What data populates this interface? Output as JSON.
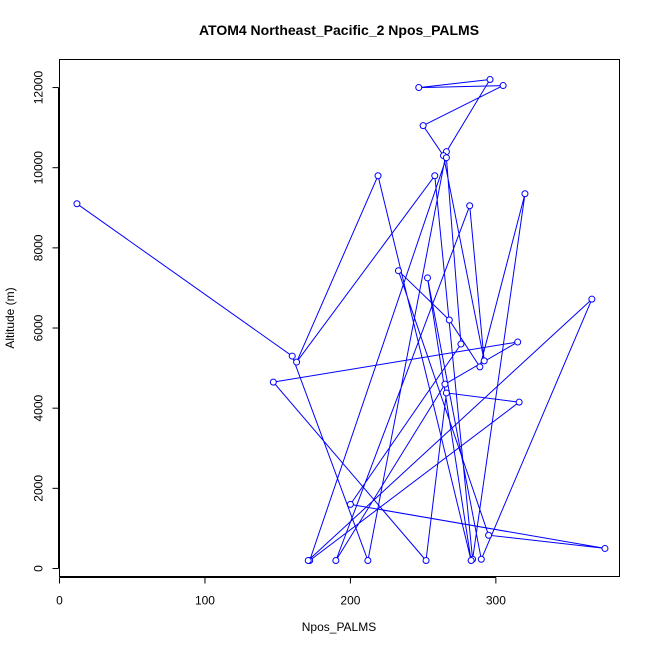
{
  "chart_data": {
    "type": "line",
    "title": "ATOM4 Northeast_Pacific_2 Npos_PALMS",
    "xlabel": "Npos_PALMS",
    "ylabel": "Altitude (m)",
    "xlim": [
      0,
      385
    ],
    "ylim": [
      -200,
      12700
    ],
    "xticks": [
      0,
      100,
      200,
      300
    ],
    "yticks": [
      0,
      2000,
      4000,
      6000,
      8000,
      10000,
      12000
    ],
    "grid": false,
    "legend": "none",
    "line_color": "#0000ff",
    "marker": "open-circle",
    "series": [
      {
        "x": [
          12,
          160,
          212,
          266,
          296,
          247,
          305,
          250,
          264,
          292,
          282,
          190,
          265,
          315,
          147,
          252,
          266,
          316,
          172,
          266,
          276,
          200,
          375,
          295,
          233,
          268,
          289,
          320,
          284,
          258,
          163,
          219,
          283,
          253,
          290,
          366,
          171
        ],
        "y": [
          9100,
          5300,
          200,
          10400,
          12200,
          12000,
          12050,
          11050,
          10300,
          5180,
          9050,
          200,
          4600,
          5650,
          4650,
          200,
          4380,
          4150,
          200,
          10250,
          5600,
          1600,
          500,
          830,
          7430,
          6200,
          5030,
          9350,
          230,
          9800,
          5150,
          9800,
          200,
          7250,
          230,
          6720,
          200
        ]
      }
    ]
  }
}
